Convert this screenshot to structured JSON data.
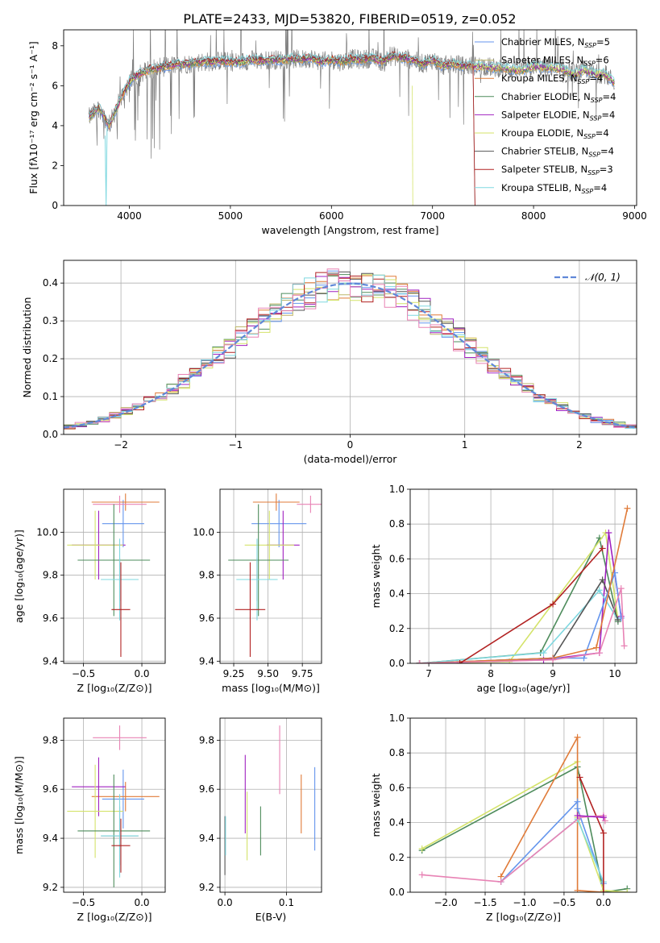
{
  "title": "PLATE=2433, MJD=53820, FIBERID=0519, z=0.052",
  "colors": {
    "Chabrier MILES": "#6495ED",
    "Salpeter MILES": "#BDB76B",
    "Kroupa MILES": "#E07B39",
    "Chabrier ELODIE": "#4E8C5C",
    "Salpeter ELODIE": "#A020C0",
    "Kroupa ELODIE": "#D4E36A",
    "Chabrier STELIB": "#555555",
    "Salpeter STELIB": "#B22222",
    "Kroupa STELIB": "#7FD8E0",
    "pink": "#E882B4",
    "data": "#7F7F7F"
  },
  "legend_spectrum": [
    {
      "key": "Chabrier MILES",
      "label": "Chabrier MILES, N",
      "sub": "SSP",
      "eq": "=5"
    },
    {
      "key": "Salpeter MILES",
      "label": "Salpeter MILES, N",
      "sub": "SSP",
      "eq": "=6"
    },
    {
      "key": "Kroupa MILES",
      "label": "Kroupa MILES, N",
      "sub": "SSP",
      "eq": "=4"
    },
    {
      "key": "Chabrier ELODIE",
      "label": "Chabrier ELODIE, N",
      "sub": "SSP",
      "eq": "=4"
    },
    {
      "key": "Salpeter ELODIE",
      "label": "Salpeter ELODIE, N",
      "sub": "SSP",
      "eq": "=4"
    },
    {
      "key": "Kroupa ELODIE",
      "label": "Kroupa ELODIE, N",
      "sub": "SSP",
      "eq": "=4"
    },
    {
      "key": "Chabrier STELIB",
      "label": "Chabrier STELIB, N",
      "sub": "SSP",
      "eq": "=4"
    },
    {
      "key": "Salpeter STELIB",
      "label": "Salpeter STELIB, N",
      "sub": "SSP",
      "eq": "=3"
    },
    {
      "key": "Kroupa STELIB",
      "label": "Kroupa STELIB, N",
      "sub": "SSP",
      "eq": "=4"
    }
  ],
  "chart_data": [
    {
      "id": "spectrum",
      "type": "line",
      "xlabel": "wavelength [Angstrom, rest frame]",
      "ylabel": "Flux [fλ10⁻¹⁷ erg cm⁻² s⁻¹ A⁻¹]",
      "xlim": [
        3350,
        9020
      ],
      "ylim": [
        0,
        8.8
      ],
      "xticks": [
        4000,
        5000,
        6000,
        7000,
        8000,
        9000
      ],
      "yticks": [
        0,
        2,
        4,
        6,
        8
      ],
      "grid": false,
      "legend_position": "right",
      "model_continuum": {
        "x": [
          3600,
          3700,
          3800,
          3900,
          4000,
          4100,
          4200,
          4300,
          4400,
          4500,
          4600,
          4700,
          4800,
          4900,
          5000,
          5100,
          5200,
          5300,
          5400,
          5500,
          5600,
          5700,
          5800,
          5900,
          6000,
          6100,
          6200,
          6300,
          6400,
          6500,
          6600,
          6700,
          6800,
          6900,
          7000,
          7100,
          7200,
          7300,
          7400,
          7500,
          7600,
          7700,
          7800,
          7900,
          8000,
          8100,
          8200,
          8300,
          8400,
          8500,
          8600,
          8700,
          8800
        ],
        "y": [
          4.4,
          4.9,
          4.0,
          5.2,
          6.2,
          6.6,
          6.8,
          6.9,
          7.0,
          7.1,
          7.1,
          7.2,
          7.2,
          7.25,
          7.2,
          7.2,
          7.3,
          7.25,
          7.3,
          7.3,
          7.35,
          7.3,
          7.4,
          7.2,
          7.3,
          7.2,
          7.35,
          7.3,
          7.4,
          7.2,
          7.5,
          7.4,
          7.3,
          7.1,
          7.3,
          7.0,
          7.1,
          7.0,
          7.0,
          7.0,
          6.9,
          6.9,
          6.8,
          6.8,
          7.0,
          6.9,
          6.9,
          6.8,
          6.6,
          6.8,
          6.6,
          6.6,
          6.2
        ]
      }
    },
    {
      "id": "residuals",
      "type": "histogram",
      "xlabel": "(data-model)/error",
      "ylabel": "Normed distribution",
      "xlim": [
        -2.5,
        2.5
      ],
      "ylim": [
        0,
        0.46
      ],
      "xticks": [
        -2,
        -1,
        0,
        1,
        2
      ],
      "yticks": [
        0.0,
        0.1,
        0.2,
        0.3,
        0.4
      ],
      "grid": true,
      "legend": "𝒩(0, 1)",
      "legend_position": "upper right",
      "reference_curve": "normal(0,1)"
    },
    {
      "id": "age_vs_Z",
      "type": "errorbar",
      "xlabel": "Z [log₁₀(Z/Z⊙)]",
      "ylabel": "age  [log₁₀(age/yr)]",
      "xlim": [
        -0.67,
        0.2
      ],
      "ylim": [
        9.39,
        10.2
      ],
      "xticks": [
        -0.5,
        0.0
      ],
      "yticks": [
        9.4,
        9.6,
        9.8,
        10.0
      ],
      "grid": true,
      "points": [
        {
          "c": "#6495ED",
          "x": -0.16,
          "xerr": 0.18,
          "y": 10.04,
          "yerr": 0.11
        },
        {
          "c": "#E07B39",
          "x": -0.14,
          "xerr": 0.29,
          "y": 10.14,
          "yerr": 0.04
        },
        {
          "c": "#E882B4",
          "x": -0.19,
          "xerr": 0.23,
          "y": 10.13,
          "yerr": 0.04
        },
        {
          "c": "#A020C0",
          "x": -0.37,
          "xerr": 0.23,
          "y": 9.94,
          "yerr": 0.16
        },
        {
          "c": "#D4E36A",
          "x": -0.4,
          "xerr": 0.24,
          "y": 9.94,
          "yerr": 0.16
        },
        {
          "c": "#4E8C5C",
          "x": -0.24,
          "xerr": 0.31,
          "y": 9.87,
          "yerr": 0.26
        },
        {
          "c": "#555555",
          "x": -0.19,
          "xerr": 0.16,
          "y": 9.78,
          "yerr": 0.1
        },
        {
          "c": "#7FD8E0",
          "x": -0.19,
          "xerr": 0.16,
          "y": 9.78,
          "yerr": 0.19
        },
        {
          "c": "#B22222",
          "x": -0.18,
          "xerr": 0.08,
          "y": 9.64,
          "yerr": 0.22
        }
      ]
    },
    {
      "id": "age_vs_mass",
      "type": "errorbar",
      "xlabel": "mass [log₁₀(M/M⊙)]",
      "ylabel": "",
      "xlim": [
        9.15,
        9.89
      ],
      "ylim": [
        9.39,
        10.2
      ],
      "xticks": [
        9.25,
        9.5,
        9.75
      ],
      "yticks": [
        9.4,
        9.6,
        9.8,
        10.0
      ],
      "grid": true,
      "points": [
        {
          "c": "#6495ED",
          "x": 9.58,
          "xerr": 0.2,
          "y": 10.04,
          "yerr": 0.11
        },
        {
          "c": "#E07B39",
          "x": 9.56,
          "xerr": 0.17,
          "y": 10.14,
          "yerr": 0.04
        },
        {
          "c": "#E882B4",
          "x": 9.81,
          "xerr": 0.1,
          "y": 10.13,
          "yerr": 0.04
        },
        {
          "c": "#A020C0",
          "x": 9.61,
          "xerr": 0.12,
          "y": 9.94,
          "yerr": 0.16
        },
        {
          "c": "#D4E36A",
          "x": 9.51,
          "xerr": 0.18,
          "y": 9.94,
          "yerr": 0.16
        },
        {
          "c": "#4E8C5C",
          "x": 9.43,
          "xerr": 0.22,
          "y": 9.87,
          "yerr": 0.26
        },
        {
          "c": "#555555",
          "x": 9.42,
          "xerr": 0.15,
          "y": 9.78,
          "yerr": 0.1
        },
        {
          "c": "#7FD8E0",
          "x": 9.42,
          "xerr": 0.15,
          "y": 9.78,
          "yerr": 0.19
        },
        {
          "c": "#B22222",
          "x": 9.37,
          "xerr": 0.11,
          "y": 9.64,
          "yerr": 0.22
        }
      ]
    },
    {
      "id": "weight_vs_age",
      "type": "line",
      "xlabel": "age  [log₁₀(age/yr)]",
      "ylabel": "mass weight",
      "xlim": [
        6.7,
        10.35
      ],
      "ylim": [
        0,
        1.0
      ],
      "xticks": [
        7,
        8,
        9,
        10
      ],
      "yticks": [
        0.0,
        0.2,
        0.4,
        0.6,
        0.8,
        1.0
      ],
      "grid": true,
      "series": [
        {
          "c": "#4E8C5C",
          "x": [
            6.85,
            8.8,
            9.75,
            10.05
          ],
          "y": [
            0.0,
            0.06,
            0.72,
            0.24
          ]
        },
        {
          "c": "#D4E36A",
          "x": [
            6.85,
            8.3,
            9.85,
            10.05
          ],
          "y": [
            0.0,
            0.01,
            0.75,
            0.25
          ]
        },
        {
          "c": "#A020C0",
          "x": [
            6.85,
            8.85,
            9.75,
            9.9,
            10.1
          ],
          "y": [
            0.0,
            0.02,
            0.06,
            0.75,
            0.27
          ]
        },
        {
          "c": "#7FD8E0",
          "x": [
            6.85,
            8.85,
            9.75,
            10.05
          ],
          "y": [
            0.0,
            0.06,
            0.42,
            0.25
          ]
        },
        {
          "c": "#555555",
          "x": [
            6.85,
            9.0,
            9.8,
            10.05
          ],
          "y": [
            0.0,
            0.03,
            0.48,
            0.25
          ]
        },
        {
          "c": "#6495ED",
          "x": [
            6.85,
            9.0,
            9.5,
            10.0,
            10.1
          ],
          "y": [
            0.0,
            0.03,
            0.03,
            0.52,
            0.26
          ]
        },
        {
          "c": "#E07B39",
          "x": [
            6.85,
            9.0,
            9.7,
            10.2
          ],
          "y": [
            0.0,
            0.03,
            0.09,
            0.89
          ]
        },
        {
          "c": "#E882B4",
          "x": [
            6.85,
            9.0,
            9.75,
            10.1,
            10.15
          ],
          "y": [
            0.0,
            0.02,
            0.06,
            0.43,
            0.1
          ]
        },
        {
          "c": "#B22222",
          "x": [
            7.5,
            9.0,
            9.8
          ],
          "y": [
            0.0,
            0.34,
            0.66
          ]
        }
      ]
    },
    {
      "id": "mass_vs_Z",
      "type": "errorbar",
      "xlabel": "Z [log₁₀(Z/Z⊙)]",
      "ylabel": "mass [log₁₀(M/M⊙)]",
      "xlim": [
        -0.67,
        0.2
      ],
      "ylim": [
        9.18,
        9.89
      ],
      "xticks": [
        -0.5,
        0.0
      ],
      "yticks": [
        9.2,
        9.4,
        9.6,
        9.8
      ],
      "grid": true,
      "points": [
        {
          "c": "#6495ED",
          "x": -0.16,
          "xerr": 0.18,
          "y": 9.56,
          "yerr": 0.12
        },
        {
          "c": "#E07B39",
          "x": -0.14,
          "xerr": 0.29,
          "y": 9.57,
          "yerr": 0.06
        },
        {
          "c": "#E882B4",
          "x": -0.19,
          "xerr": 0.23,
          "y": 9.81,
          "yerr": 0.05
        },
        {
          "c": "#A020C0",
          "x": -0.37,
          "xerr": 0.23,
          "y": 9.61,
          "yerr": 0.12
        },
        {
          "c": "#D4E36A",
          "x": -0.4,
          "xerr": 0.24,
          "y": 9.51,
          "yerr": 0.19
        },
        {
          "c": "#4E8C5C",
          "x": -0.24,
          "xerr": 0.31,
          "y": 9.43,
          "yerr": 0.23
        },
        {
          "c": "#555555",
          "x": -0.19,
          "xerr": 0.16,
          "y": 9.41,
          "yerr": 0.12
        },
        {
          "c": "#7FD8E0",
          "x": -0.19,
          "xerr": 0.16,
          "y": 9.41,
          "yerr": 0.17
        },
        {
          "c": "#B22222",
          "x": -0.18,
          "xerr": 0.08,
          "y": 9.37,
          "yerr": 0.11
        }
      ]
    },
    {
      "id": "mass_vs_ebv",
      "type": "errorbar",
      "xlabel": "E(B-V)",
      "ylabel": "",
      "xlim": [
        -0.008,
        0.157
      ],
      "ylim": [
        9.18,
        9.89
      ],
      "xticks": [
        0.0,
        0.1
      ],
      "yticks": [
        9.2,
        9.4,
        9.6,
        9.8
      ],
      "grid": true,
      "points": [
        {
          "c": "#555555",
          "x": 0.0,
          "xerr": 0,
          "y": 9.37,
          "yerr": 0.12
        },
        {
          "c": "#7FD8E0",
          "x": 0.001,
          "xerr": 0,
          "y": 9.41,
          "yerr": 0.08
        },
        {
          "c": "#A020C0",
          "x": 0.033,
          "xerr": 0,
          "y": 9.58,
          "yerr": 0.16
        },
        {
          "c": "#D4E36A",
          "x": 0.036,
          "xerr": 0,
          "y": 9.45,
          "yerr": 0.14
        },
        {
          "c": "#4E8C5C",
          "x": 0.058,
          "xerr": 0,
          "y": 9.43,
          "yerr": 0.1
        },
        {
          "c": "#E882B4",
          "x": 0.089,
          "xerr": 0,
          "y": 9.72,
          "yerr": 0.14
        },
        {
          "c": "#E07B39",
          "x": 0.124,
          "xerr": 0,
          "y": 9.54,
          "yerr": 0.12
        },
        {
          "c": "#6495ED",
          "x": 0.146,
          "xerr": 0,
          "y": 9.52,
          "yerr": 0.17
        }
      ]
    },
    {
      "id": "weight_vs_Z",
      "type": "line",
      "xlabel": "Z [log₁₀(Z/Z⊙)]",
      "ylabel": "mass weight",
      "xlim": [
        -2.45,
        0.42
      ],
      "ylim": [
        0,
        1.0
      ],
      "xticks": [
        -2.0,
        -1.5,
        -1.0,
        -0.5,
        0.0
      ],
      "yticks": [
        0.0,
        0.2,
        0.4,
        0.6,
        0.8,
        1.0
      ],
      "grid": true,
      "series": [
        {
          "c": "#4E8C5C",
          "x": [
            -2.3,
            -0.33,
            0.0,
            0.3
          ],
          "y": [
            0.24,
            0.72,
            0.0,
            0.02
          ]
        },
        {
          "c": "#D4E36A",
          "x": [
            -2.3,
            -0.33,
            -0.33,
            0.0,
            0.3
          ],
          "y": [
            0.25,
            0.75,
            0.43,
            0.01,
            0.0
          ]
        },
        {
          "c": "#E07B39",
          "x": [
            -1.3,
            -0.33,
            -0.33,
            0.0
          ],
          "y": [
            0.09,
            0.89,
            0.01,
            0.0
          ]
        },
        {
          "c": "#6495ED",
          "x": [
            -1.3,
            -0.33,
            -0.33,
            0.0
          ],
          "y": [
            0.06,
            0.52,
            0.48,
            0.05
          ]
        },
        {
          "c": "#7FD8E0",
          "x": [
            -1.3,
            -0.33,
            0.0
          ],
          "y": [
            0.06,
            0.42,
            0.06
          ]
        },
        {
          "c": "#B22222",
          "x": [
            -0.3,
            0.0,
            0.0
          ],
          "y": [
            0.66,
            0.34,
            0.0
          ]
        },
        {
          "c": "#E882B4",
          "x": [
            -2.3,
            -1.3,
            -0.3,
            0.0,
            0.02
          ],
          "y": [
            0.1,
            0.06,
            0.43,
            0.44,
            0.41
          ]
        },
        {
          "c": "#A020C0",
          "x": [
            -0.33,
            0.0
          ],
          "y": [
            0.44,
            0.43
          ]
        }
      ]
    }
  ]
}
